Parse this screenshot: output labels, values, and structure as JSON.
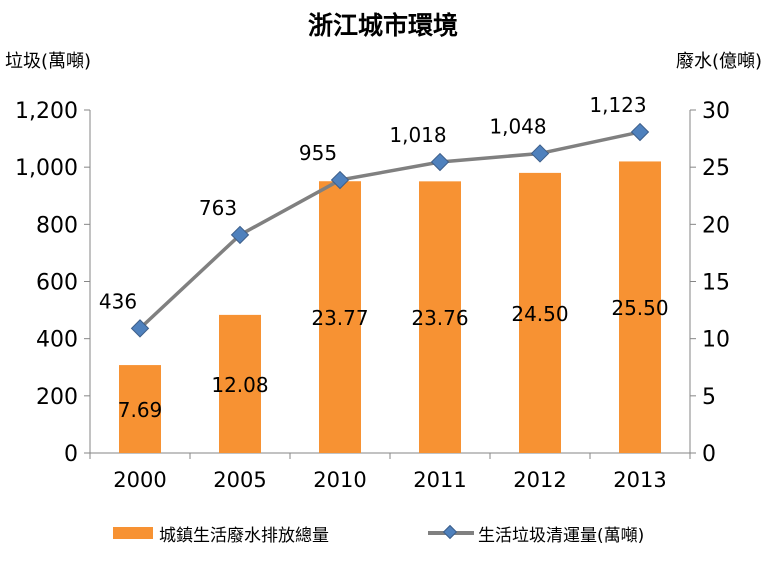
{
  "chart_data": {
    "type": "bar+line",
    "title": "浙江城市環境",
    "ylabel_left": "垃圾(萬噸)",
    "ylabel_right": "廢水(億噸)",
    "categories": [
      "2000",
      "2005",
      "2010",
      "2011",
      "2012",
      "2013"
    ],
    "ylim_left": [
      0,
      1200
    ],
    "yticks_left": [
      "0",
      "200",
      "400",
      "600",
      "800",
      "1,000",
      "1,200"
    ],
    "ylim_right": [
      0,
      30
    ],
    "yticks_right": [
      "0",
      "5",
      "10",
      "15",
      "20",
      "25",
      "30"
    ],
    "grid": false,
    "legend_position": "bottom",
    "series": [
      {
        "name": "城鎮生活廢水排放總量",
        "type": "bar",
        "axis": "right",
        "color": "#f79233",
        "values": [
          7.69,
          12.08,
          23.77,
          23.76,
          24.5,
          25.5
        ],
        "labels": [
          "7.69",
          "12.08",
          "23.77",
          "23.76",
          "24.50",
          "25.50"
        ]
      },
      {
        "name": "生活垃圾清運量(萬噸)",
        "type": "line",
        "axis": "left",
        "color": "#808080",
        "marker_color": "#4f81bd",
        "values": [
          436,
          763,
          955,
          1018,
          1048,
          1123
        ],
        "labels": [
          "436",
          "763",
          "955",
          "1,018",
          "1,048",
          "1,123"
        ]
      }
    ]
  }
}
